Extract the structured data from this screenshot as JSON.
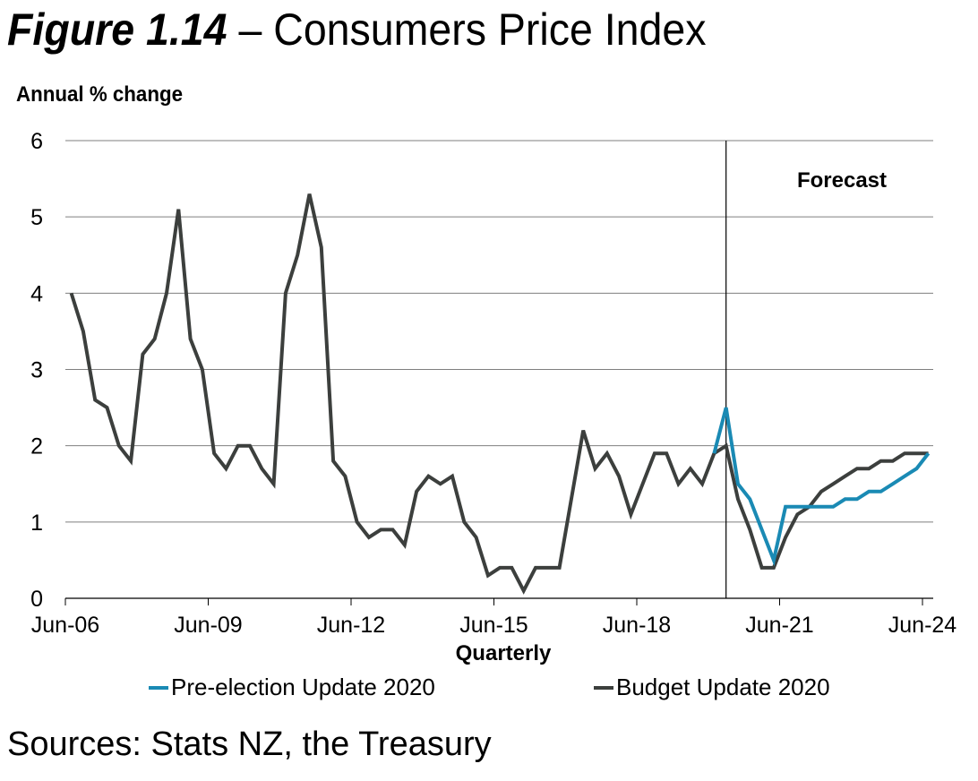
{
  "title": {
    "figure": "Figure 1.14",
    "text": "– Consumers Price Index"
  },
  "source": "Sources: Stats NZ, the Treasury",
  "colors": {
    "pre_election": "#1a8ab4",
    "budget": "#3c3f3d",
    "grid": "#7f7f7f",
    "axis": "#000000"
  },
  "chart_data": {
    "type": "line",
    "title": "Consumers Price Index",
    "ylabel": "Annual % change",
    "xlabel": "Quarterly",
    "ylim": [
      0,
      6
    ],
    "yticks": [
      0,
      1,
      2,
      3,
      4,
      5,
      6
    ],
    "x_tick_labels": [
      "Jun-06",
      "Jun-09",
      "Jun-12",
      "Jun-15",
      "Jun-18",
      "Jun-21",
      "Jun-24"
    ],
    "x_start": "Jun-06",
    "x_end": "Jun-24",
    "n_quarters": 73,
    "grid": true,
    "legend_position": "bottom",
    "annotations": [
      {
        "text": "Forecast",
        "position": "top-right"
      }
    ],
    "forecast_start_index": 55,
    "series": [
      {
        "name": "Pre-election Update 2020",
        "start_index": 54,
        "values": [
          1.9,
          2.5,
          1.5,
          1.3,
          0.9,
          0.5,
          1.2,
          1.2,
          1.2,
          1.2,
          1.2,
          1.3,
          1.3,
          1.4,
          1.4,
          1.5,
          1.6,
          1.7,
          1.9
        ]
      },
      {
        "name": "Budget Update 2020",
        "start_index": 0,
        "values": [
          4.0,
          3.5,
          2.6,
          2.5,
          2.0,
          1.8,
          3.2,
          3.4,
          4.0,
          5.1,
          3.4,
          3.0,
          1.9,
          1.7,
          2.0,
          2.0,
          1.7,
          1.5,
          4.0,
          4.5,
          5.3,
          4.6,
          1.8,
          1.6,
          1.0,
          0.8,
          0.9,
          0.9,
          0.7,
          1.4,
          1.6,
          1.5,
          1.6,
          1.0,
          0.8,
          0.3,
          0.4,
          0.4,
          0.1,
          0.4,
          0.4,
          0.4,
          1.3,
          2.2,
          1.7,
          1.9,
          1.6,
          1.1,
          1.5,
          1.9,
          1.9,
          1.5,
          1.7,
          1.5,
          1.9,
          2.0,
          1.3,
          0.9,
          0.4,
          0.4,
          0.8,
          1.1,
          1.2,
          1.4,
          1.5,
          1.6,
          1.7,
          1.7,
          1.8,
          1.8,
          1.9,
          1.9,
          1.9
        ]
      }
    ]
  }
}
